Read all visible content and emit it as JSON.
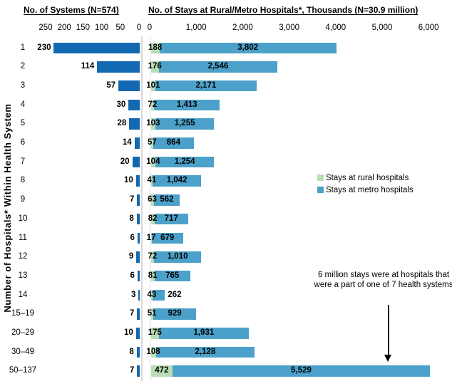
{
  "left_chart": {
    "title": "No. of Systems (N=574)",
    "axis_ticks": [
      "250",
      "200",
      "150",
      "100",
      "50",
      "0"
    ]
  },
  "right_chart": {
    "title": "No. of Stays at Rural/Metro Hospitals*, Thousands (N=30.9 million)",
    "axis_ticks": [
      "0",
      "1,000",
      "2,000",
      "3,000",
      "4,000",
      "5,000",
      "6,000"
    ]
  },
  "y_axis_label": "Number of Hospitals* Within Health System",
  "legend": {
    "items": [
      {
        "label": "Stays at rural hospitals",
        "color": "#b9ddb5"
      },
      {
        "label": "Stays at metro hospitals",
        "color": "#4ba1c9"
      }
    ]
  },
  "annotation": {
    "text": "6 million stays were at hospitals that were a part of one of 7 health systems"
  },
  "colors": {
    "systems_bar": "#1268b1",
    "rural_bar": "#b9ddb5",
    "metro_bar": "#4ba1c9",
    "axis_line": "#d9d9d9",
    "label_text": "#000000"
  },
  "chart_data": {
    "type": "bar",
    "orientation": "horizontal",
    "layout": "dual-panel, left panel mirrored (bars grow right-to-left), right panel stacked",
    "categories": [
      "1",
      "2",
      "3",
      "4",
      "5",
      "6",
      "7",
      "8",
      "9",
      "10",
      "11",
      "12",
      "13",
      "14",
      "15–19",
      "20–29",
      "30–49",
      "50–137"
    ],
    "left_axis": {
      "range": [
        0,
        250
      ],
      "gridlines": false
    },
    "right_axis": {
      "range": [
        0,
        6000
      ],
      "gridlines": false
    },
    "series": [
      {
        "name": "No. of Systems",
        "panel": "left",
        "values": [
          230,
          114,
          57,
          30,
          28,
          14,
          20,
          10,
          7,
          8,
          6,
          9,
          6,
          3,
          7,
          10,
          8,
          7
        ],
        "labels": [
          "230",
          "114",
          "57",
          "30",
          "28",
          "14",
          "20",
          "10",
          "7",
          "8",
          "6",
          "9",
          "6",
          "3",
          "7",
          "10",
          "8",
          "7"
        ]
      },
      {
        "name": "Stays at rural hospitals",
        "panel": "right",
        "stack": "stays",
        "values": [
          188,
          176,
          101,
          72,
          103,
          57,
          104,
          41,
          63,
          82,
          17,
          72,
          81,
          43,
          51,
          175,
          108,
          472
        ],
        "labels": [
          "188",
          "176",
          "101",
          "72",
          "103",
          "57",
          "104",
          "41",
          "63",
          "82",
          "17",
          "72",
          "81",
          "43",
          "51",
          "175",
          "108",
          "472"
        ]
      },
      {
        "name": "Stays at metro hospitals",
        "panel": "right",
        "stack": "stays",
        "values": [
          3802,
          2546,
          2171,
          1413,
          1255,
          864,
          1254,
          1042,
          562,
          717,
          679,
          1010,
          765,
          262,
          929,
          1931,
          2128,
          5529
        ],
        "labels": [
          "3,802",
          "2,546",
          "2,171",
          "1,413",
          "1,255",
          "864",
          "1,254",
          "1,042",
          "562",
          "717",
          "679",
          "1,010",
          "765",
          "262",
          "929",
          "1,931",
          "2,128",
          "5,529"
        ]
      }
    ]
  }
}
